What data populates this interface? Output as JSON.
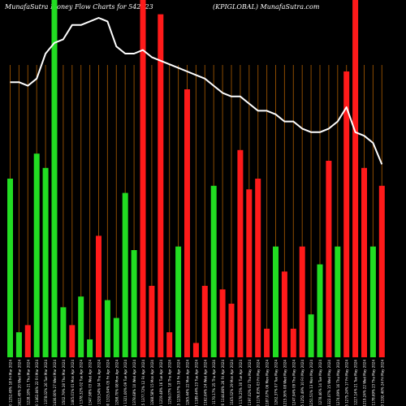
{
  "chart_data": {
    "type": "bar",
    "title_left": "MunafaSutra  Money Flow  Charts for 542323",
    "title_right": "(KPIGLOBAL) MunafaSutra.com",
    "bar_colors": {
      "up": "#22dd22",
      "down": "#ff1a1a"
    },
    "line_color": "#ffffff",
    "grid_color": "#8a4a00",
    "ylim": [
      0,
      100
    ],
    "categories": [
      "410.70 1252.49% 18 Fri Mar 2024",
      "426.90 1622.49% 20 Wed Mar 2024",
      "426.00 1228.18% 21 Thu Mar 2024",
      "475.50 1462.84% 22 Fri Mar 2024",
      "504.95 1378.02% 26 Tue Mar 2024",
      "516.00 1436.00% 27 Wed Mar 2024",
      "593.10 1502.79% 28 Thu Mar 2024",
      "591.30 1465.01% 01 Mon Apr 2024",
      "576.85 1378.32% 02 Tue Apr 2024",
      "558.70 1347.98% 03 Wed Apr 2024",
      "552.40 1329.54% 04 Thu Apr 2024",
      "553.00 1315.94% 05 Fri Apr 2024",
      "542.35 1298.70% 08 Mon Apr 2024",
      "546.35 1321.00% 09 Tue Apr 2024",
      "552.20 1378.68% 10 Wed Apr 2024",
      "521.15 1377.72% 12 Fri Apr 2024",
      "489.15 1288.58% 15 Mon Apr 2024",
      "473.90 1219.48% 16 Tue Apr 2024",
      "476.45 1256.07% 18 Thu Apr 2024",
      "477.15 1259.97% 19 Fri Apr 2024",
      "479.85 1265.44% 22 Mon Apr 2024",
      "473.00 1189.44% 23 Tue Apr 2024",
      "469.30 1162.64% 24 Wed Apr 2024",
      "466.95 1170.17% 25 Thu Apr 2024",
      "464.20 1144.86% 26 Fri Apr 2024",
      "459.48 1165.02% 29 Mon Apr 2024",
      "458.49 1178.25% 30 Tue Apr 2024",
      "455.25 1197.02% 02 Thu May 2024",
      "450.50 1176.83% 03 Fri May 2024",
      "448.28 1187.07% 06 Mon May 2024",
      "435.25 1262.37% 07 Tue May 2024",
      "421.55 1215.36% 08 Wed May 2024",
      "431.25 1247.94% 09 Thu May 2024",
      "421.75 1252.49% 10 Fri May 2024",
      "413.40 1251.51% 13 Mon May 2024",
      "431.20 1278.46% 14 Tue May 2024",
      "448.39 1322.07% 15 Wed May 2024",
      "438.50 1274.09% 16 Thu May 2024",
      "426.35 1275.24% 17 Fri May 2024",
      "384.30 1227.14% 21 Tue May 2024",
      "386.75 1219.24% 22 Wed May 2024",
      "379.00 1178.69% 23 Thu May 2024",
      "376.40 1192.46% 24 Fri May 2024"
    ],
    "series": [
      {
        "directions": [
          "up",
          "up",
          "down",
          "up",
          "up",
          "up",
          "up",
          "down",
          "up",
          "up",
          "down",
          "up",
          "up",
          "up",
          "up",
          "down",
          "down",
          "down",
          "down",
          "up",
          "down",
          "down",
          "down",
          "up",
          "down",
          "down",
          "down",
          "down",
          "down",
          "down",
          "up",
          "down",
          "down",
          "down",
          "up",
          "up",
          "down",
          "up",
          "down",
          "down",
          "down",
          "up",
          "down"
        ],
        "values": [
          50,
          7,
          9,
          57,
          53,
          100,
          14,
          9,
          17,
          5,
          34,
          16,
          11,
          46,
          30,
          100,
          20,
          96,
          7,
          31,
          75,
          4,
          20,
          48,
          19,
          15,
          58,
          47,
          50,
          8,
          31,
          24,
          8,
          31,
          12,
          26,
          55,
          31,
          80,
          100,
          53,
          31,
          48
        ]
      }
    ],
    "line_values": [
      77,
      77,
      76,
      78,
      85,
      88,
      89,
      93,
      93,
      94,
      95,
      94,
      87,
      85,
      85,
      86,
      84,
      83,
      82,
      81,
      80,
      79,
      78,
      76,
      74,
      73,
      73,
      71,
      69,
      69,
      68,
      66,
      66,
      64,
      63,
      63,
      64,
      66,
      70,
      63,
      62,
      60,
      54
    ]
  }
}
